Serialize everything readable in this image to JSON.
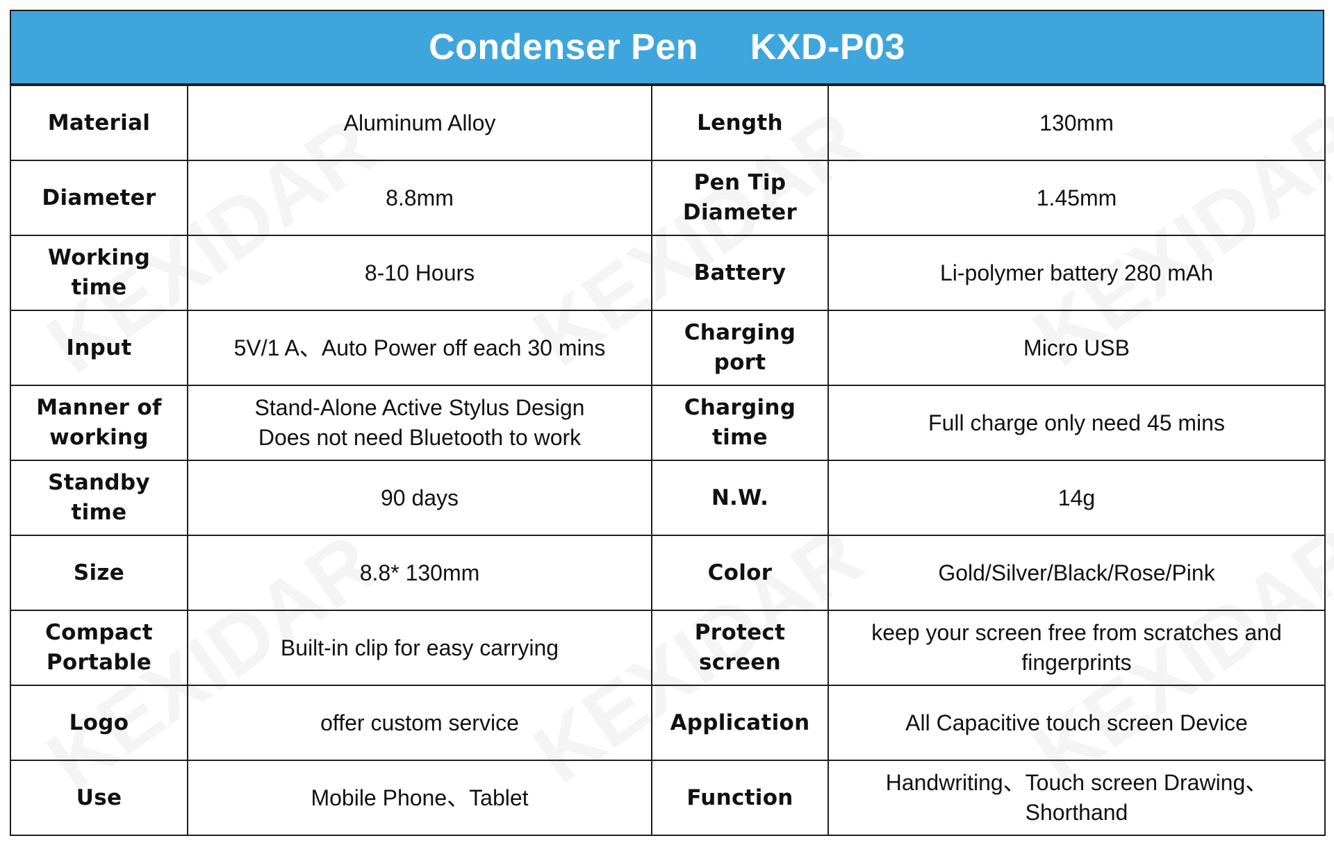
{
  "header": {
    "title": "Condenser Pen     KXD-P03"
  },
  "watermark": "KEXIDAR",
  "rows": [
    {
      "label1": "Material",
      "value1": "Aluminum Alloy",
      "label2": "Length",
      "value2": "130mm"
    },
    {
      "label1": "Diameter",
      "value1": "8.8mm",
      "label2": "Pen Tip\nDiameter",
      "value2": "1.45mm"
    },
    {
      "label1": "Working time",
      "value1": "8-10 Hours",
      "label2": "Battery",
      "value2": "Li-polymer battery 280 mAh"
    },
    {
      "label1": "Input",
      "value1": "5V/1 A、Auto Power off each 30 mins",
      "label2": "Charging port",
      "value2": "Micro USB"
    },
    {
      "label1": "Manner of\nworking",
      "value1": "Stand-Alone Active Stylus Design\nDoes not need Bluetooth to work",
      "label2": "Charging time",
      "value2": "Full charge only need 45 mins"
    },
    {
      "label1": "Standby time",
      "value1": "90 days",
      "label2": "N.W.",
      "value2": "14g"
    },
    {
      "label1": "Size",
      "value1": "8.8* 130mm",
      "label2": "Color",
      "value2": "Gold/Silver/Black/Rose/Pink"
    },
    {
      "label1": "Compact\nPortable",
      "value1": "Built-in clip for easy carrying",
      "label2": "Protect screen",
      "value2": "keep your screen free from scratches and\nfingerprints"
    },
    {
      "label1": "Logo",
      "value1": "offer custom service",
      "label2": "Application",
      "value2": "All Capacitive touch screen Device"
    },
    {
      "label1": "Use",
      "value1": "Mobile Phone、Tablet",
      "label2": "Function",
      "value2": "Handwriting、Touch screen Drawing、\nShorthand"
    }
  ],
  "colors": {
    "header_bg": "#3ea6dd",
    "header_text": "#ffffff",
    "border": "#1f1f1f",
    "text": "#111111"
  }
}
